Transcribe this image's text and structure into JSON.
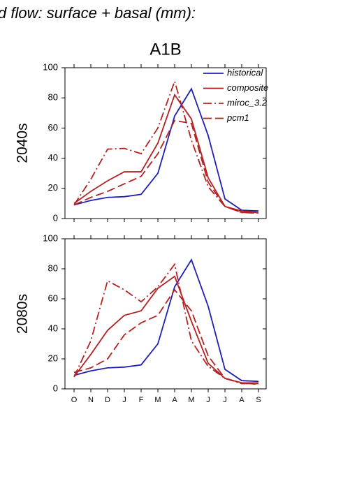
{
  "chart_data": [
    {
      "type": "line",
      "title": "d flow: surface + basal (mm):",
      "subtitle": "A1B",
      "ylabel": "2040s",
      "categories": [
        "O",
        "N",
        "D",
        "J",
        "F",
        "M",
        "A",
        "M",
        "J",
        "J",
        "A",
        "S"
      ],
      "ylim": [
        0,
        100
      ],
      "yticks": [
        0,
        20,
        40,
        60,
        80,
        100
      ],
      "legend": "upper right",
      "series": [
        {
          "name": "historical",
          "color": "#1f1fb4",
          "style": "solid",
          "values": [
            9,
            12,
            14,
            14.5,
            16,
            30,
            68,
            86,
            55,
            13,
            5.5,
            5
          ]
        },
        {
          "name": "composite",
          "color": "#b22222",
          "style": "solid",
          "values": [
            10,
            18,
            25,
            31,
            31,
            50,
            82,
            66,
            27,
            8,
            5,
            4
          ]
        },
        {
          "name": "miroc_3.2",
          "color": "#b22222",
          "style": "dashdot",
          "values": [
            9,
            26,
            46,
            46.5,
            43,
            60,
            91,
            52,
            21,
            8,
            4,
            3.5
          ]
        },
        {
          "name": "pcm1",
          "color": "#b22222",
          "style": "dash",
          "values": [
            9,
            14,
            18,
            23,
            28,
            43,
            65,
            63,
            24,
            8,
            4,
            4
          ]
        }
      ]
    },
    {
      "type": "line",
      "ylabel": "2080s",
      "categories": [
        "O",
        "N",
        "D",
        "J",
        "F",
        "M",
        "A",
        "M",
        "J",
        "J",
        "A",
        "S"
      ],
      "ylim": [
        0,
        100
      ],
      "yticks": [
        0,
        20,
        40,
        60,
        80,
        100
      ],
      "series": [
        {
          "name": "historical",
          "color": "#1f1fb4",
          "style": "solid",
          "values": [
            9,
            12,
            14,
            14.5,
            16,
            30,
            68,
            86,
            55,
            13,
            5.5,
            5
          ]
        },
        {
          "name": "composite",
          "color": "#b22222",
          "style": "solid",
          "values": [
            8,
            23,
            39,
            49,
            52,
            67,
            75,
            45,
            17,
            7,
            4,
            4
          ]
        },
        {
          "name": "miroc_3.2",
          "color": "#b22222",
          "style": "dashdot",
          "values": [
            8,
            32,
            72,
            66,
            58,
            68,
            83,
            32,
            15,
            7,
            3.5,
            3.5
          ]
        },
        {
          "name": "pcm1",
          "color": "#b22222",
          "style": "dash",
          "values": [
            11,
            14,
            20,
            36,
            44,
            49,
            66,
            52,
            22,
            7,
            4,
            3
          ]
        }
      ]
    }
  ]
}
